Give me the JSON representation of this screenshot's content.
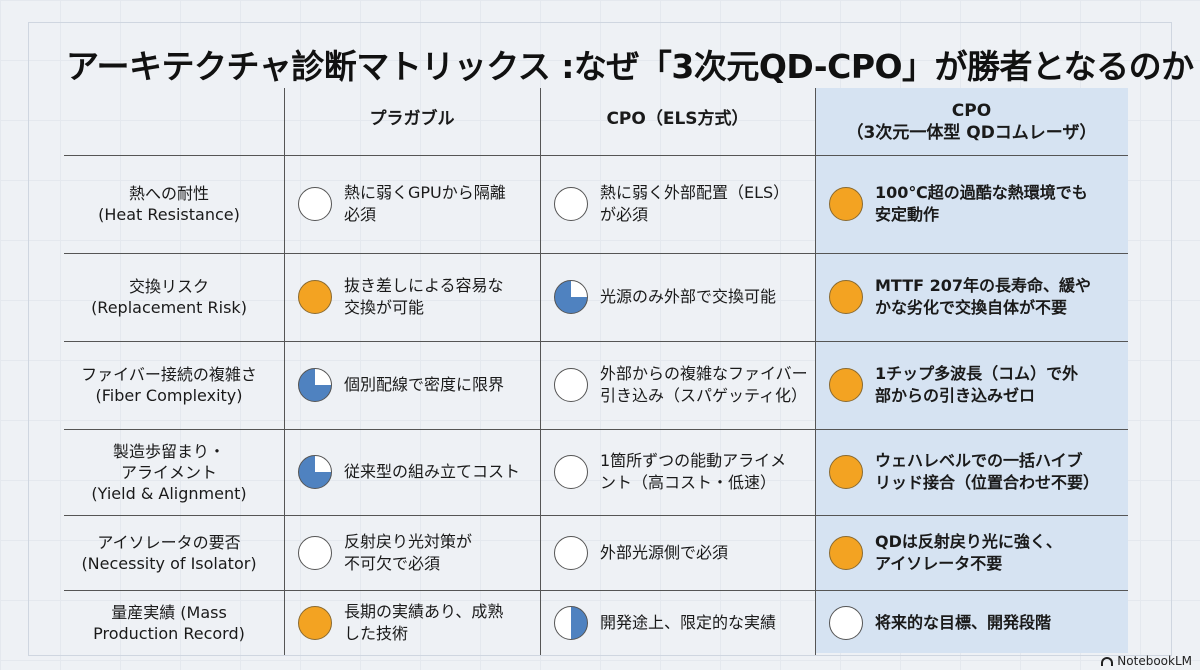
{
  "title": "アーキテクチャ診断マトリックス :なぜ「3次元QD-CPO」が勝者となるのか",
  "headers": [
    {
      "lines": [
        "プラガブル"
      ]
    },
    {
      "lines": [
        "CPO（ELS方式）"
      ]
    },
    {
      "lines": [
        "CPO",
        "（3次元一体型 QDコムレーザ）"
      ]
    }
  ],
  "rows": [
    {
      "label": [
        "熱への耐性",
        "(Heat Resistance)"
      ],
      "cells": [
        {
          "rating": "empty",
          "text": [
            "熱に弱くGPUから隔離",
            "必須"
          ]
        },
        {
          "rating": "empty",
          "text": [
            "熱に弱く外部配置（ELS）",
            "が必須"
          ]
        },
        {
          "rating": "full",
          "text": [
            "100℃超の過酷な熱環境でも",
            "安定動作"
          ]
        }
      ]
    },
    {
      "label": [
        "交換リスク",
        "(Replacement Risk)"
      ],
      "cells": [
        {
          "rating": "full",
          "text": [
            "抜き差しによる容易な",
            "交換が可能"
          ]
        },
        {
          "rating": "quarter",
          "text": [
            "光源のみ外部で交換可能"
          ]
        },
        {
          "rating": "full",
          "text": [
            "MTTF 207年の長寿命、緩や",
            "かな劣化で交換自体が不要"
          ]
        }
      ]
    },
    {
      "label": [
        "ファイバー接続の複雑さ",
        "(Fiber Complexity)"
      ],
      "cells": [
        {
          "rating": "quarter",
          "text": [
            "個別配線で密度に限界"
          ]
        },
        {
          "rating": "empty",
          "text": [
            "外部からの複雑なファイバー",
            "引き込み（スパゲッティ化）"
          ]
        },
        {
          "rating": "full",
          "text": [
            "1チップ多波長（コム）で外",
            "部からの引き込みゼロ"
          ]
        }
      ]
    },
    {
      "label": [
        "製造歩留まり・",
        "アライメント",
        "(Yield & Alignment)"
      ],
      "cells": [
        {
          "rating": "quarter",
          "text": [
            "従来型の組み立てコスト"
          ]
        },
        {
          "rating": "empty",
          "text": [
            "1箇所ずつの能動アライメ",
            "ント（高コスト・低速）"
          ]
        },
        {
          "rating": "full",
          "text": [
            "ウェハレベルでの一括ハイブ",
            "リッド接合（位置合わせ不要）"
          ]
        }
      ]
    },
    {
      "label": [
        "アイソレータの要否",
        "(Necessity of Isolator)"
      ],
      "cells": [
        {
          "rating": "empty",
          "text": [
            "反射戻り光対策が",
            "不可欠で必須"
          ]
        },
        {
          "rating": "empty",
          "text": [
            "外部光源側で必須"
          ]
        },
        {
          "rating": "full",
          "text": [
            "QDは反射戻り光に強く、",
            "アイソレータ不要"
          ]
        }
      ]
    },
    {
      "label": [
        "量産実績 (Mass",
        "Production Record)"
      ],
      "cells": [
        {
          "rating": "full",
          "text": [
            "長期の実績あり、成熟",
            "した技術"
          ]
        },
        {
          "rating": "half",
          "text": [
            "開発途上、限定的な実績"
          ]
        },
        {
          "rating": "empty",
          "text": [
            "将来的な目標、開発段階"
          ]
        }
      ]
    }
  ],
  "footer": {
    "brand": "NotebookLM"
  },
  "colors": {
    "accent_full": "#f3a322",
    "accent_partial": "#4f82c0",
    "highlight_column": "#d6e3f2"
  }
}
